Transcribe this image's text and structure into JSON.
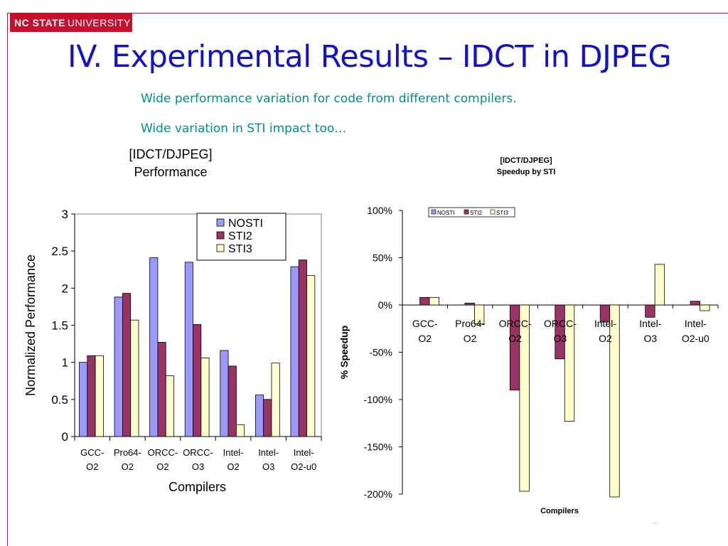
{
  "header": {
    "logo_bold": "NC STATE",
    "logo_regular": "UNIVERSITY",
    "title": "IV. Experimental Results – IDCT in DJPEG",
    "bullets": [
      "Wide performance variation for code from different compilers.",
      "Wide variation in STI impact too…"
    ]
  },
  "colors": {
    "nosti": "#9999ff",
    "sti2": "#993366",
    "sti3": "#ffffcc",
    "brand": "#c8102e",
    "title": "#1212c8",
    "bullet": "#008e8e"
  },
  "footer": {
    "page_number": "--"
  },
  "chart_data": [
    {
      "type": "bar",
      "title": "[IDCT/DJPEG] Performance",
      "title_lines": [
        "[IDCT/DJPEG]",
        "Performance"
      ],
      "xlabel": "Compilers",
      "ylabel": "Normalized Performance",
      "ylim": [
        0,
        3
      ],
      "yticks": [
        "0",
        "0.5",
        "1",
        "1.5",
        "2",
        "2.5",
        "3"
      ],
      "categories": [
        [
          "GCC-",
          "O2"
        ],
        [
          "Pro64-",
          "O2"
        ],
        [
          "ORCC-",
          "O2"
        ],
        [
          "ORCC-",
          "O3"
        ],
        [
          "Intel-",
          "O2"
        ],
        [
          "Intel-",
          "O3"
        ],
        [
          "Intel-",
          "O2-u0"
        ]
      ],
      "legend_position": "top-right",
      "series": [
        {
          "name": "NOSTI",
          "values": [
            1.0,
            1.88,
            2.41,
            2.35,
            1.16,
            0.56,
            2.29
          ]
        },
        {
          "name": "STI2",
          "values": [
            1.09,
            1.93,
            1.27,
            1.51,
            0.95,
            0.5,
            2.38
          ]
        },
        {
          "name": "STI3",
          "values": [
            1.09,
            1.57,
            0.82,
            1.06,
            0.16,
            0.99,
            2.17
          ]
        }
      ]
    },
    {
      "type": "bar",
      "title": "[IDCT/DJPEG] Speedup by STI",
      "title_lines": [
        "[IDCT/DJPEG]",
        "Speedup by STI"
      ],
      "xlabel": "Compilers",
      "ylabel": "% Speedup",
      "ylim": [
        -200,
        100
      ],
      "yticks": [
        "-200%",
        "-150%",
        "-100%",
        "-50%",
        "0%",
        "50%",
        "100%"
      ],
      "categories": [
        [
          "GCC-",
          "O2"
        ],
        [
          "Pro64-",
          "O2"
        ],
        [
          "ORCC-",
          "O2"
        ],
        [
          "ORCC-",
          "O3"
        ],
        [
          "Intel-",
          "O2"
        ],
        [
          "Intel-",
          "O3"
        ],
        [
          "Intel-",
          "O2-u0"
        ]
      ],
      "legend_position": "top-left",
      "series": [
        {
          "name": "NOSTI",
          "values": [
            0,
            0,
            0,
            0,
            0,
            0,
            0
          ]
        },
        {
          "name": "STI2",
          "values": [
            8,
            2,
            -90,
            -57,
            -18,
            -13,
            4
          ]
        },
        {
          "name": "STI3",
          "values": [
            8,
            -20,
            -197,
            -123,
            -203,
            43,
            -6
          ]
        }
      ]
    }
  ]
}
